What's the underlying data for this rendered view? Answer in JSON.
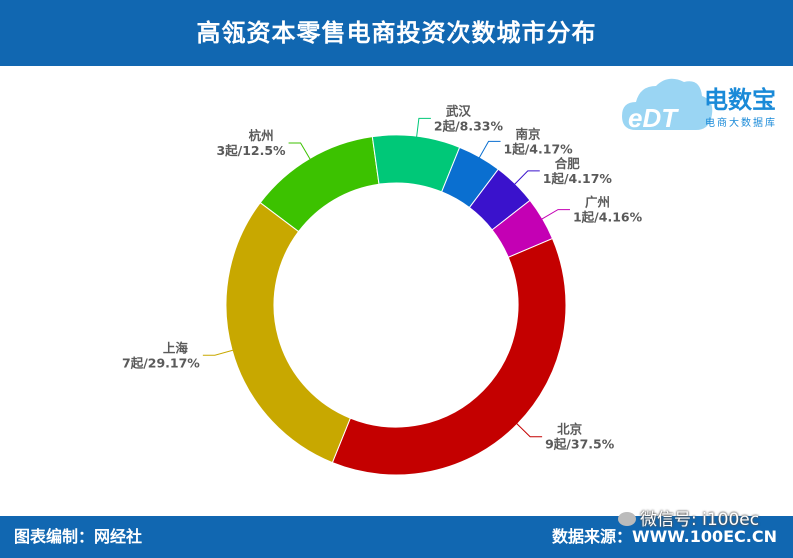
{
  "header": {
    "title": "高瓴资本零售电商投资次数城市分布"
  },
  "footer": {
    "credit": "图表编制：网经社",
    "source": "数据来源：WWW.100EC.CN",
    "wechat": "微信号: i100ec"
  },
  "logo": {
    "name": "电数宝",
    "tagline": "电商大数据库",
    "mark": "eDT",
    "icon": "cloud-icon"
  },
  "colors": {
    "header": "#1167b1",
    "hangzhou": "#3cc200",
    "wuhan": "#00c878",
    "nanjing": "#0a6fd0",
    "hefei": "#3a12cc",
    "guangzhou": "#c400b4",
    "beijing": "#c40000",
    "shanghai": "#c8a800"
  },
  "chart_data": {
    "type": "pie",
    "donut": true,
    "title": "高瓴资本零售电商投资次数城市分布",
    "slices": [
      {
        "city": "杭州",
        "label": "3起/12.5%",
        "count": 3,
        "percent": 12.5,
        "color": "#3cc200"
      },
      {
        "city": "武汉",
        "label": "2起/8.33%",
        "count": 2,
        "percent": 8.33,
        "color": "#00c878"
      },
      {
        "city": "南京",
        "label": "1起/4.17%",
        "count": 1,
        "percent": 4.17,
        "color": "#0a6fd0"
      },
      {
        "city": "合肥",
        "label": "1起/4.17%",
        "count": 1,
        "percent": 4.17,
        "color": "#3a12cc"
      },
      {
        "city": "广州",
        "label": "1起/4.16%",
        "count": 1,
        "percent": 4.16,
        "color": "#c400b4"
      },
      {
        "city": "北京",
        "label": "9起/37.5%",
        "count": 9,
        "percent": 37.5,
        "color": "#c40000"
      },
      {
        "city": "上海",
        "label": "7起/29.17%",
        "count": 7,
        "percent": 29.17,
        "color": "#c8a800"
      }
    ]
  }
}
